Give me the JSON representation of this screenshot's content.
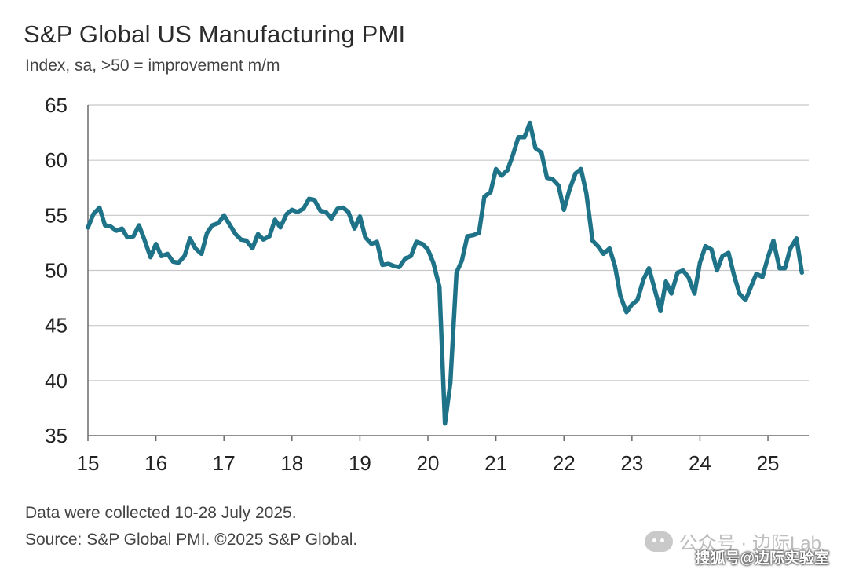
{
  "title": "S&P Global US Manufacturing PMI",
  "subtitle": "Index, sa, >50 = improvement m/m",
  "footer": {
    "collected": "Data were collected 10-28 July 2025.",
    "source": "Source: S&P Global PMI. ©2025 S&P Global."
  },
  "watermark": {
    "wechat": "公众号 · 边际Lab",
    "sohu": "搜狐号@边际实验室"
  },
  "colors": {
    "line": "#1f7388",
    "grid": "#c8c8c8",
    "axis": "#6a6a6a"
  },
  "chart_data": {
    "type": "line",
    "title": "S&P Global US Manufacturing PMI",
    "ylabel": "",
    "xlabel": "",
    "ylim": [
      35,
      65
    ],
    "yticks": [
      35,
      40,
      45,
      50,
      55,
      60,
      65
    ],
    "xlim": [
      2015.0,
      2025.6
    ],
    "xticks": [
      {
        "value": 2015,
        "label": "15"
      },
      {
        "value": 2016,
        "label": "16"
      },
      {
        "value": 2017,
        "label": "17"
      },
      {
        "value": 2018,
        "label": "18"
      },
      {
        "value": 2019,
        "label": "19"
      },
      {
        "value": 2020,
        "label": "20"
      },
      {
        "value": 2021,
        "label": "21"
      },
      {
        "value": 2022,
        "label": "22"
      },
      {
        "value": 2023,
        "label": "23"
      },
      {
        "value": 2024,
        "label": "24"
      },
      {
        "value": 2025,
        "label": "25"
      }
    ],
    "grid": true,
    "series": [
      {
        "x": [
          2015.0,
          2015.08,
          2015.17,
          2015.25,
          2015.33,
          2015.42,
          2015.5,
          2015.58,
          2015.67,
          2015.75,
          2015.83,
          2015.92,
          2016.0,
          2016.08,
          2016.17,
          2016.25,
          2016.33,
          2016.42,
          2016.5,
          2016.58,
          2016.67,
          2016.75,
          2016.83,
          2016.92,
          2017.0,
          2017.08,
          2017.17,
          2017.25,
          2017.33,
          2017.42,
          2017.5,
          2017.58,
          2017.67,
          2017.75,
          2017.83,
          2017.92,
          2018.0,
          2018.08,
          2018.17,
          2018.25,
          2018.33,
          2018.42,
          2018.5,
          2018.58,
          2018.67,
          2018.75,
          2018.83,
          2018.92,
          2019.0,
          2019.08,
          2019.17,
          2019.25,
          2019.33,
          2019.42,
          2019.5,
          2019.58,
          2019.67,
          2019.75,
          2019.83,
          2019.92,
          2020.0,
          2020.08,
          2020.17,
          2020.25,
          2020.33,
          2020.42,
          2020.5,
          2020.58,
          2020.67,
          2020.75,
          2020.83,
          2020.92,
          2021.0,
          2021.08,
          2021.17,
          2021.25,
          2021.33,
          2021.42,
          2021.5,
          2021.58,
          2021.67,
          2021.75,
          2021.83,
          2021.92,
          2022.0,
          2022.08,
          2022.17,
          2022.25,
          2022.33,
          2022.42,
          2022.5,
          2022.58,
          2022.67,
          2022.75,
          2022.83,
          2022.92,
          2023.0,
          2023.08,
          2023.17,
          2023.25,
          2023.33,
          2023.42,
          2023.5,
          2023.58,
          2023.67,
          2023.75,
          2023.83,
          2023.92,
          2024.0,
          2024.08,
          2024.17,
          2024.25,
          2024.33,
          2024.42,
          2024.5,
          2024.58,
          2024.67,
          2024.75,
          2024.83,
          2024.92,
          2025.0,
          2025.08,
          2025.17,
          2025.25,
          2025.33,
          2025.42,
          2025.5
        ],
        "y": [
          53.9,
          55.1,
          55.7,
          54.1,
          54.0,
          53.6,
          53.8,
          53.0,
          53.1,
          54.1,
          52.8,
          51.2,
          52.4,
          51.3,
          51.5,
          50.8,
          50.7,
          51.3,
          52.9,
          52.0,
          51.5,
          53.4,
          54.1,
          54.3,
          55.0,
          54.2,
          53.3,
          52.8,
          52.7,
          52.0,
          53.3,
          52.8,
          53.1,
          54.6,
          53.9,
          55.1,
          55.5,
          55.3,
          55.6,
          56.5,
          56.4,
          55.4,
          55.3,
          54.7,
          55.6,
          55.7,
          55.3,
          53.8,
          54.9,
          53.0,
          52.4,
          52.6,
          50.5,
          50.6,
          50.4,
          50.3,
          51.1,
          51.3,
          52.6,
          52.4,
          51.9,
          50.7,
          48.5,
          36.1,
          39.8,
          49.8,
          50.9,
          53.1,
          53.2,
          53.4,
          56.7,
          57.1,
          59.2,
          58.6,
          59.1,
          60.5,
          62.1,
          62.1,
          63.4,
          61.1,
          60.7,
          58.4,
          58.3,
          57.7,
          55.5,
          57.3,
          58.8,
          59.2,
          57.0,
          52.7,
          52.2,
          51.5,
          52.0,
          50.4,
          47.7,
          46.2,
          46.9,
          47.3,
          49.2,
          50.2,
          48.4,
          46.3,
          49.0,
          47.9,
          49.8,
          50.0,
          49.4,
          47.9,
          50.7,
          52.2,
          51.9,
          50.0,
          51.3,
          51.6,
          49.6,
          47.9,
          47.3,
          48.5,
          49.7,
          49.4,
          51.2,
          52.7,
          50.2,
          50.2,
          52.0,
          52.9,
          49.8
        ]
      }
    ]
  }
}
